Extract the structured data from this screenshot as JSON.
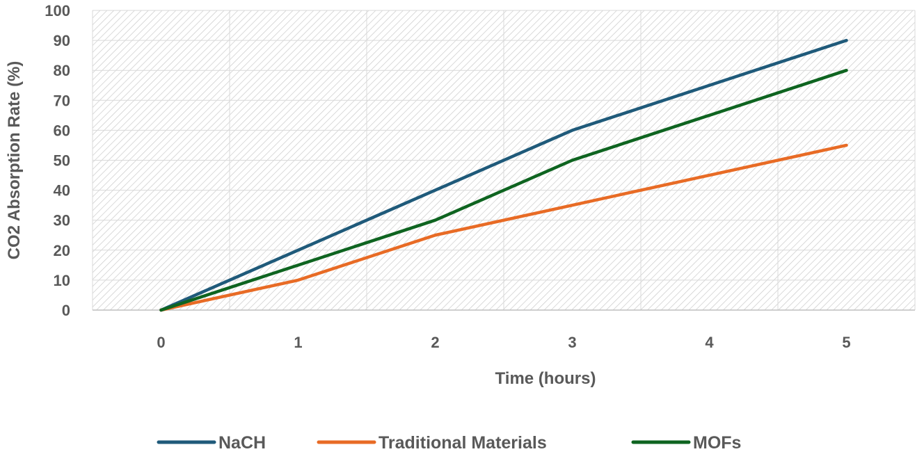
{
  "chart_data": {
    "type": "line",
    "title": "",
    "xlabel": "Time (hours)",
    "ylabel": "CO2 Absorption Rate (%)",
    "x": [
      0,
      1,
      2,
      3,
      4,
      5
    ],
    "x_ticks": [
      "0",
      "1",
      "2",
      "3",
      "4",
      "5"
    ],
    "y_ticks": [
      "0",
      "10",
      "20",
      "30",
      "40",
      "50",
      "60",
      "70",
      "80",
      "90",
      "100"
    ],
    "ylim": [
      0,
      100
    ],
    "grid": true,
    "legend_position": "bottom",
    "series": [
      {
        "name": "NaCH",
        "color": "#1f5a7a",
        "values": [
          0,
          20,
          40,
          60,
          75,
          90
        ]
      },
      {
        "name": "Traditional Materials",
        "color": "#e86b25",
        "values": [
          0,
          10,
          25,
          35,
          45,
          55
        ]
      },
      {
        "name": "MOFs",
        "color": "#0e6420",
        "values": [
          0,
          15,
          30,
          50,
          65,
          80
        ]
      }
    ]
  }
}
